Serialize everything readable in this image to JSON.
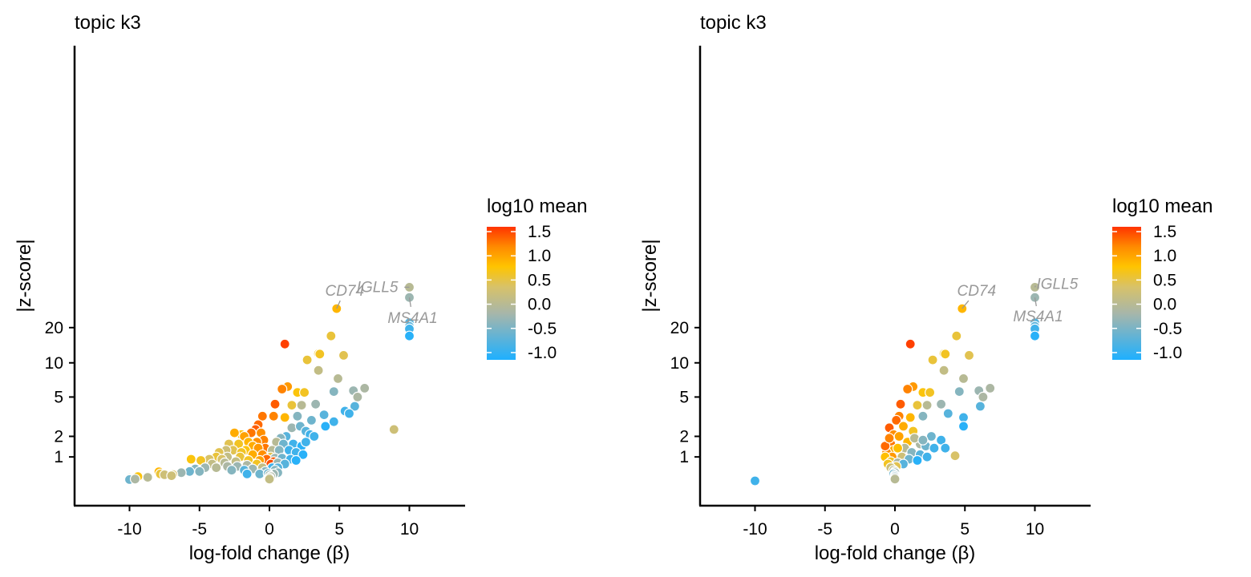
{
  "colors": {
    "scale": [
      "#1EB0FF",
      "#D8C268",
      "#FFC400",
      "#FF3300"
    ],
    "point_stroke": "#ffffff",
    "label_text": "#999999",
    "axis": "#000000"
  },
  "colorbar": {
    "title": "log10 mean",
    "min": -1.15,
    "max": 1.6,
    "ticks": [
      1.5,
      1.0,
      0.5,
      0.0,
      -0.5,
      -1.0
    ],
    "tick_labels": [
      "1.5",
      "1.0",
      "0.5",
      "0.0",
      "-0.5",
      "-1.0"
    ]
  },
  "chart_data": [
    {
      "type": "scatter",
      "title": "topic k3",
      "xlabel": "log-fold change (β)",
      "ylabel": "|z-score|",
      "xlim": [
        -14,
        14
      ],
      "ylim": [
        0,
        60
      ],
      "y_scale": "asinh",
      "xticks": [
        -10,
        -5,
        0,
        5,
        10
      ],
      "xtick_labels": [
        "-10",
        "-5",
        "0",
        "5",
        "10"
      ],
      "yticks": [
        1,
        2,
        5,
        10,
        20
      ],
      "ytick_labels": [
        "1",
        "2",
        "5",
        "10",
        "20"
      ],
      "labels": [
        {
          "text": "IGLL5",
          "x": 10,
          "y": 44
        },
        {
          "text": "MS4A1",
          "x": 10,
          "y": 36
        },
        {
          "text": "CD74",
          "x": 4.8,
          "y": 29
        }
      ],
      "points": [
        [
          10,
          44,
          -0.4
        ],
        [
          10,
          36,
          -0.6
        ],
        [
          4.8,
          29,
          0.5
        ],
        [
          10,
          22,
          -0.9
        ],
        [
          10,
          20.5,
          -0.9
        ],
        [
          10,
          19.5,
          -1.0
        ],
        [
          10,
          17,
          -1.1
        ],
        [
          4.4,
          17,
          0.1
        ],
        [
          1.1,
          14.5,
          1.5
        ],
        [
          3.5,
          12,
          0.2
        ],
        [
          3.6,
          11.9,
          0.2
        ],
        [
          5.3,
          11.6,
          0.0
        ],
        [
          2.7,
          10.6,
          0.1
        ],
        [
          3.5,
          8.6,
          -0.3
        ],
        [
          4.9,
          7.3,
          -0.4
        ],
        [
          6.8,
          6.0,
          -0.5
        ],
        [
          6.0,
          5.7,
          -0.6
        ],
        [
          6.3,
          5.0,
          -0.5
        ],
        [
          1.3,
          6.2,
          0.8
        ],
        [
          0.9,
          5.9,
          1.0
        ],
        [
          2.0,
          5.5,
          0.3
        ],
        [
          2.5,
          5.5,
          0.2
        ],
        [
          4.6,
          5.6,
          -0.7
        ],
        [
          6.1,
          4.1,
          -0.9
        ],
        [
          5.4,
          3.7,
          -1.0
        ],
        [
          5.7,
          3.5,
          -1.0
        ],
        [
          0.4,
          4.3,
          1.3
        ],
        [
          1.6,
          4.2,
          0.1
        ],
        [
          2.3,
          4.2,
          -0.4
        ],
        [
          3.3,
          4.3,
          -0.6
        ],
        [
          0.3,
          3.3,
          1.0
        ],
        [
          1.1,
          3.2,
          0.5
        ],
        [
          2.0,
          3.3,
          -0.7
        ],
        [
          3.9,
          3.4,
          -0.9
        ],
        [
          -0.5,
          3.3,
          1.1
        ],
        [
          3.0,
          3.0,
          -0.8
        ],
        [
          4.6,
          2.9,
          -1.0
        ],
        [
          4.0,
          2.6,
          -1.1
        ],
        [
          8.9,
          2.4,
          -0.2
        ],
        [
          -0.8,
          2.7,
          1.2
        ],
        [
          -1.0,
          2.4,
          1.3
        ],
        [
          -1.3,
          2.2,
          1.1
        ],
        [
          -0.6,
          2.2,
          0.9
        ],
        [
          1.6,
          2.5,
          -0.6
        ],
        [
          2.2,
          2.6,
          -0.8
        ],
        [
          2.6,
          2.3,
          -0.9
        ],
        [
          -2.0,
          2.1,
          0.4
        ],
        [
          -2.5,
          2.2,
          0.6
        ],
        [
          -1.8,
          2.0,
          0.7
        ],
        [
          1.2,
          2.0,
          -0.9
        ],
        [
          0.8,
          1.9,
          -0.7
        ],
        [
          2.9,
          2.1,
          -1.0
        ],
        [
          3.2,
          2.0,
          -1.0
        ],
        [
          -0.4,
          1.8,
          1.0
        ],
        [
          -0.9,
          1.7,
          0.9
        ],
        [
          -1.5,
          1.7,
          0.5
        ],
        [
          -2.2,
          1.6,
          0.2
        ],
        [
          -2.9,
          1.6,
          0.0
        ],
        [
          -1.2,
          1.5,
          0.6
        ],
        [
          0.5,
          1.7,
          -0.4
        ],
        [
          1.0,
          1.6,
          -0.8
        ],
        [
          1.7,
          1.6,
          -1.0
        ],
        [
          2.3,
          1.5,
          -1.1
        ],
        [
          2.6,
          1.7,
          -1.0
        ],
        [
          -0.3,
          1.4,
          1.1
        ],
        [
          -0.8,
          1.4,
          0.8
        ],
        [
          -1.7,
          1.3,
          0.3
        ],
        [
          -2.6,
          1.3,
          0.0
        ],
        [
          -3.1,
          1.3,
          -0.2
        ],
        [
          -3.6,
          1.2,
          0.0
        ],
        [
          -2.0,
          1.2,
          0.2
        ],
        [
          0.2,
          1.3,
          -0.4
        ],
        [
          0.7,
          1.3,
          -0.7
        ],
        [
          1.4,
          1.3,
          -1.0
        ],
        [
          1.9,
          1.2,
          -1.0
        ],
        [
          2.4,
          1.1,
          -1.1
        ],
        [
          -0.5,
          1.1,
          0.9
        ],
        [
          -1.2,
          1.1,
          0.6
        ],
        [
          -2.1,
          1.0,
          0.1
        ],
        [
          -3.0,
          1.0,
          -0.3
        ],
        [
          -3.8,
          1.0,
          0.1
        ],
        [
          -4.3,
          0.9,
          -0.1
        ],
        [
          -5.6,
          0.9,
          0.3
        ],
        [
          -4.9,
          0.85,
          0.2
        ],
        [
          -3.4,
          0.9,
          -0.1
        ],
        [
          0.1,
          1.0,
          0.0
        ],
        [
          0.4,
          0.95,
          -0.6
        ],
        [
          0.9,
          0.95,
          -0.8
        ],
        [
          1.5,
          0.9,
          -1.0
        ],
        [
          1.9,
          0.85,
          -1.1
        ],
        [
          -0.2,
          0.9,
          1.2
        ],
        [
          -0.7,
          0.85,
          0.7
        ],
        [
          -1.5,
          0.85,
          0.2
        ],
        [
          -2.4,
          0.8,
          -0.3
        ],
        [
          -3.2,
          0.75,
          -0.4
        ],
        [
          -4.1,
          0.7,
          -0.3
        ],
        [
          0.3,
          0.8,
          1.3
        ],
        [
          0.1,
          0.7,
          1.4
        ],
        [
          0.6,
          0.75,
          -0.6
        ],
        [
          1.1,
          0.7,
          -0.9
        ],
        [
          -0.9,
          0.7,
          0.2
        ],
        [
          -1.6,
          0.65,
          -0.5
        ],
        [
          -2.3,
          0.6,
          -0.6
        ],
        [
          -3.0,
          0.6,
          -0.5
        ],
        [
          -3.8,
          0.55,
          -0.4
        ],
        [
          -4.6,
          0.55,
          -0.6
        ],
        [
          -5.3,
          0.5,
          -0.7
        ],
        [
          0.2,
          0.55,
          -1.0
        ],
        [
          0.6,
          0.55,
          -0.9
        ],
        [
          -0.5,
          0.55,
          -0.3
        ],
        [
          -1.2,
          0.5,
          -0.6
        ],
        [
          -1.8,
          0.45,
          -0.9
        ],
        [
          -2.7,
          0.45,
          -0.7
        ],
        [
          -5.7,
          0.4,
          -0.8
        ],
        [
          -6.3,
          0.35,
          -0.6
        ],
        [
          -5.0,
          0.4,
          -0.7
        ],
        [
          0.4,
          0.45,
          -0.7
        ],
        [
          0.6,
          0.35,
          -0.7
        ],
        [
          0.3,
          0.3,
          -0.6
        ],
        [
          -0.3,
          0.4,
          -0.7
        ],
        [
          -0.7,
          0.3,
          -0.8
        ],
        [
          -1.6,
          0.3,
          -1.0
        ],
        [
          -0.1,
          0.32,
          -0.8
        ],
        [
          0.0,
          0.25,
          -0.6
        ],
        [
          0.1,
          0.2,
          -0.5
        ],
        [
          0.0,
          0.15,
          -0.4
        ],
        [
          0.0,
          0.1,
          -0.3
        ],
        [
          -7.9,
          0.39,
          0.5
        ],
        [
          -7.8,
          0.3,
          0.1
        ],
        [
          -7.5,
          0.27,
          -0.2
        ],
        [
          -6.9,
          0.28,
          -0.1
        ],
        [
          -7.0,
          0.23,
          -0.2
        ],
        [
          -9.4,
          0.2,
          0.3
        ],
        [
          -8.7,
          0.17,
          -0.4
        ],
        [
          -10.0,
          0.15,
          -0.3
        ],
        [
          -10.0,
          0.12,
          -0.2
        ],
        [
          -10.0,
          0.08,
          -0.8
        ],
        [
          -9.6,
          0.1,
          -0.5
        ]
      ]
    },
    {
      "type": "scatter",
      "title": "topic k3",
      "xlabel": "log-fold change (β)",
      "ylabel": "|z-score|",
      "xlim": [
        -14,
        14
      ],
      "ylim": [
        0,
        60
      ],
      "y_scale": "asinh",
      "xticks": [
        -10,
        -5,
        0,
        5,
        10
      ],
      "xtick_labels": [
        "-10",
        "-5",
        "0",
        "5",
        "10"
      ],
      "yticks": [
        1,
        2,
        5,
        10,
        20
      ],
      "ytick_labels": [
        "1",
        "2",
        "5",
        "10",
        "20"
      ],
      "labels": [
        {
          "text": "IGLL5",
          "x": 10,
          "y": 44
        },
        {
          "text": "MS4A1",
          "x": 10,
          "y": 36
        },
        {
          "text": "CD74",
          "x": 4.8,
          "y": 29
        }
      ],
      "points": [
        [
          10,
          44,
          -0.4
        ],
        [
          10,
          36,
          -0.6
        ],
        [
          4.8,
          29,
          0.5
        ],
        [
          10,
          22,
          -0.9
        ],
        [
          10,
          20.5,
          -0.9
        ],
        [
          10,
          19.5,
          -1.0
        ],
        [
          10,
          17,
          -1.1
        ],
        [
          4.4,
          17,
          0.1
        ],
        [
          1.1,
          14.5,
          1.5
        ],
        [
          3.5,
          12,
          0.2
        ],
        [
          3.6,
          11.9,
          0.2
        ],
        [
          5.3,
          11.6,
          0.0
        ],
        [
          2.7,
          10.6,
          0.1
        ],
        [
          3.5,
          8.6,
          -0.3
        ],
        [
          4.9,
          7.3,
          -0.4
        ],
        [
          6.8,
          6.0,
          -0.5
        ],
        [
          6.0,
          5.7,
          -0.6
        ],
        [
          6.3,
          5.0,
          -0.5
        ],
        [
          1.3,
          6.2,
          0.8
        ],
        [
          0.9,
          5.9,
          1.0
        ],
        [
          2.0,
          5.5,
          0.3
        ],
        [
          2.5,
          5.5,
          0.2
        ],
        [
          4.6,
          5.6,
          -0.7
        ],
        [
          6.1,
          4.1,
          -0.9
        ],
        [
          4.9,
          3.2,
          -1.0
        ],
        [
          4.9,
          2.6,
          -1.1
        ],
        [
          0.4,
          4.3,
          1.3
        ],
        [
          1.6,
          4.2,
          0.1
        ],
        [
          2.3,
          4.2,
          -0.4
        ],
        [
          3.3,
          4.3,
          -0.6
        ],
        [
          0.3,
          3.3,
          1.0
        ],
        [
          1.1,
          3.2,
          0.5
        ],
        [
          2.0,
          3.3,
          -0.7
        ],
        [
          3.8,
          3.5,
          -0.9
        ],
        [
          0.1,
          3.0,
          1.2
        ],
        [
          -0.4,
          2.5,
          1.3
        ],
        [
          0.6,
          2.6,
          0.6
        ],
        [
          1.3,
          2.3,
          0.2
        ],
        [
          2.6,
          2.0,
          -0.8
        ],
        [
          3.3,
          1.8,
          -1.0
        ],
        [
          3.6,
          1.4,
          -1.0
        ],
        [
          -0.1,
          2.1,
          0.9
        ],
        [
          0.3,
          2.0,
          0.7
        ],
        [
          0.9,
          1.7,
          0.5
        ],
        [
          1.8,
          1.6,
          -0.5
        ],
        [
          2.2,
          1.5,
          -0.8
        ],
        [
          2.8,
          1.4,
          -1.0
        ],
        [
          -0.3,
          1.6,
          1.1
        ],
        [
          -0.1,
          1.3,
          0.6
        ],
        [
          0.7,
          1.4,
          -0.4
        ],
        [
          1.2,
          1.2,
          -0.7
        ],
        [
          1.8,
          1.1,
          -0.9
        ],
        [
          2.3,
          1.0,
          -1.0
        ],
        [
          4.3,
          1.05,
          -0.1
        ],
        [
          -0.6,
          1.2,
          0.9
        ],
        [
          -0.2,
          1.0,
          0.8
        ],
        [
          0.5,
          1.0,
          -0.2
        ],
        [
          1.0,
          0.9,
          -0.8
        ],
        [
          1.6,
          0.85,
          -1.1
        ],
        [
          -0.7,
          1.0,
          0.4
        ],
        [
          -0.3,
          0.8,
          0.2
        ],
        [
          0.2,
          0.75,
          -0.5
        ],
        [
          0.6,
          0.7,
          -0.9
        ],
        [
          -0.5,
          0.7,
          0.2
        ],
        [
          0.1,
          0.6,
          0.0
        ],
        [
          -0.3,
          0.55,
          -0.2
        ],
        [
          -0.1,
          0.45,
          -0.4
        ],
        [
          0.0,
          0.4,
          -0.3
        ],
        [
          0.0,
          0.35,
          -0.6
        ],
        [
          -0.1,
          0.3,
          -0.8
        ],
        [
          0.0,
          0.25,
          -0.7
        ],
        [
          0.0,
          0.2,
          -0.7
        ],
        [
          0.0,
          0.15,
          -0.6
        ],
        [
          0.0,
          0.1,
          -0.4
        ],
        [
          -0.7,
          1.5,
          1.2
        ],
        [
          -0.4,
          1.9,
          1.0
        ],
        [
          0.2,
          1.4,
          0.4
        ],
        [
          1.4,
          1.9,
          -0.4
        ],
        [
          2.0,
          1.8,
          -0.7
        ],
        [
          -10.0,
          0.03,
          -1.0
        ]
      ]
    }
  ]
}
